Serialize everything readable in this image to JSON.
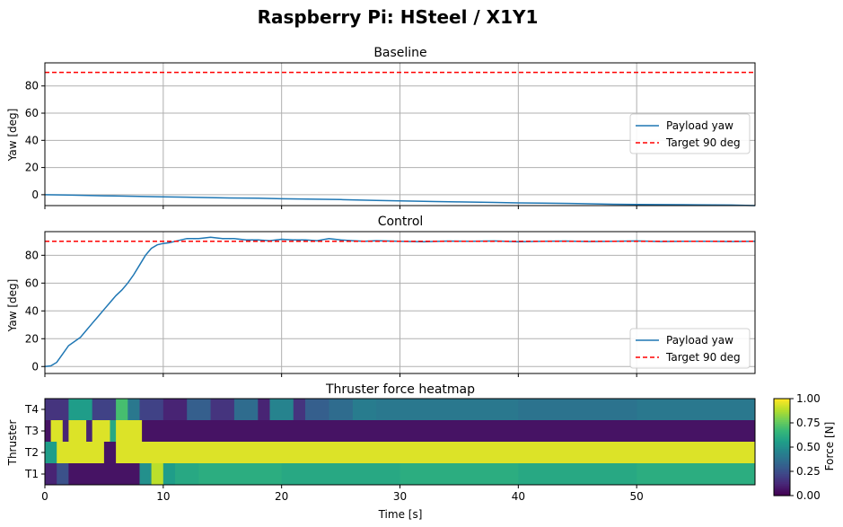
{
  "figure": {
    "title": "Raspberry Pi: HSteel / X1Y1"
  },
  "colors": {
    "yaw": "#1f77b4",
    "target": "#ff0000",
    "grid": "#b0b0b0"
  },
  "chart_data": [
    {
      "type": "line",
      "title": "Baseline",
      "xlabel": "",
      "ylabel": "Yaw [deg]",
      "xlim": [
        0,
        60
      ],
      "ylim": [
        -8,
        97
      ],
      "xticks": [
        0,
        10,
        20,
        30,
        40,
        50
      ],
      "yticks": [
        0,
        20,
        40,
        60,
        80
      ],
      "grid": true,
      "legend_position": "center-right",
      "series": [
        {
          "name": "Payload yaw",
          "style": "solid",
          "x": [
            0,
            2,
            5,
            8,
            10,
            12,
            15,
            18,
            20,
            25,
            28,
            30,
            33,
            35,
            38,
            40,
            42,
            45,
            48,
            50,
            52,
            55,
            58,
            60
          ],
          "y": [
            0,
            -0.3,
            -0.8,
            -1.2,
            -1.5,
            -1.8,
            -2.3,
            -2.6,
            -3.0,
            -3.6,
            -4.2,
            -4.5,
            -5.0,
            -5.3,
            -5.7,
            -6.0,
            -6.2,
            -6.5,
            -7.0,
            -7.2,
            -7.3,
            -7.4,
            -7.6,
            -8.0
          ]
        },
        {
          "name": "Target 90 deg",
          "style": "dashed",
          "x": [
            0,
            60
          ],
          "y": [
            90,
            90
          ]
        }
      ]
    },
    {
      "type": "line",
      "title": "Control",
      "xlabel": "",
      "ylabel": "Yaw [deg]",
      "xlim": [
        0,
        60
      ],
      "ylim": [
        -5,
        97
      ],
      "xticks": [
        0,
        10,
        20,
        30,
        40,
        50
      ],
      "yticks": [
        0,
        20,
        40,
        60,
        80
      ],
      "grid": true,
      "legend_position": "lower-right",
      "series": [
        {
          "name": "Payload yaw",
          "style": "solid",
          "x": [
            0,
            0.5,
            1,
            1.5,
            2,
            2.5,
            3,
            3.5,
            4,
            4.5,
            5,
            5.5,
            6,
            6.5,
            7,
            7.5,
            8,
            8.5,
            9,
            9.5,
            10,
            10.5,
            11,
            12,
            13,
            14,
            15,
            16,
            17,
            18,
            19,
            20,
            21,
            22,
            23,
            24,
            25,
            26,
            27,
            28,
            30,
            32,
            34,
            36,
            38,
            40,
            42,
            44,
            46,
            48,
            50,
            52,
            54,
            56,
            58,
            60
          ],
          "y": [
            0,
            0.5,
            3,
            9,
            15,
            18,
            21,
            26,
            31,
            36,
            41,
            46,
            51,
            55,
            60,
            66,
            73,
            80,
            85,
            87.5,
            88.5,
            89,
            90,
            92,
            92,
            93,
            92,
            92,
            91,
            91,
            90.5,
            91.5,
            91,
            91,
            90.5,
            92,
            91,
            90.5,
            90,
            90.5,
            90,
            89.8,
            90.2,
            90,
            90.3,
            89.8,
            90.1,
            90.2,
            89.9,
            90,
            90.3,
            89.9,
            90,
            90.1,
            89.9,
            90
          ]
        },
        {
          "name": "Target 90 deg",
          "style": "dashed",
          "x": [
            0,
            60
          ],
          "y": [
            90,
            90
          ]
        }
      ]
    },
    {
      "type": "heatmap",
      "title": "Thruster force heatmap",
      "xlabel": "Time [s]",
      "ylabel": "Thruster",
      "xlim": [
        0,
        60
      ],
      "xticks": [
        0,
        10,
        20,
        30,
        40,
        50
      ],
      "rows": [
        "T4",
        "T3",
        "T2",
        "T1"
      ],
      "colorbar": {
        "label": "Force [N]",
        "min": 0.0,
        "max": 1.0,
        "ticks": [
          "1.00",
          "0.75",
          "0.50",
          "0.25",
          "0.00"
        ]
      },
      "segments": {
        "T4": [
          [
            0,
            2,
            0.15
          ],
          [
            2,
            4,
            0.55
          ],
          [
            4,
            6,
            0.2
          ],
          [
            6,
            7,
            0.7
          ],
          [
            7,
            8,
            0.4
          ],
          [
            8,
            10,
            0.2
          ],
          [
            10,
            12,
            0.1
          ],
          [
            12,
            14,
            0.3
          ],
          [
            14,
            16,
            0.15
          ],
          [
            16,
            18,
            0.35
          ],
          [
            18,
            19,
            0.1
          ],
          [
            19,
            21,
            0.45
          ],
          [
            21,
            22,
            0.15
          ],
          [
            22,
            24,
            0.3
          ],
          [
            24,
            26,
            0.35
          ],
          [
            26,
            28,
            0.42
          ],
          [
            28,
            40,
            0.4
          ],
          [
            40,
            50,
            0.38
          ],
          [
            50,
            60,
            0.4
          ]
        ],
        "T3": [
          [
            0,
            0.5,
            0.05
          ],
          [
            0.5,
            1.5,
            0.95
          ],
          [
            1.5,
            2,
            0.1
          ],
          [
            2,
            3.5,
            0.95
          ],
          [
            3.5,
            4,
            0.1
          ],
          [
            4,
            5.5,
            0.95
          ],
          [
            5.5,
            6,
            0.6
          ],
          [
            6,
            8.2,
            0.95
          ],
          [
            8.2,
            60,
            0.05
          ]
        ],
        "T2": [
          [
            0,
            1,
            0.55
          ],
          [
            1,
            5,
            0.95
          ],
          [
            5,
            6,
            0.05
          ],
          [
            6,
            60,
            0.95
          ]
        ],
        "T1": [
          [
            0,
            1,
            0.1
          ],
          [
            1,
            2,
            0.25
          ],
          [
            2,
            8,
            0.05
          ],
          [
            8,
            9,
            0.5
          ],
          [
            9,
            10,
            0.9
          ],
          [
            10,
            11,
            0.55
          ],
          [
            11,
            13,
            0.6
          ],
          [
            13,
            20,
            0.62
          ],
          [
            20,
            30,
            0.6
          ],
          [
            30,
            40,
            0.62
          ],
          [
            40,
            50,
            0.6
          ],
          [
            50,
            60,
            0.62
          ]
        ]
      }
    }
  ]
}
